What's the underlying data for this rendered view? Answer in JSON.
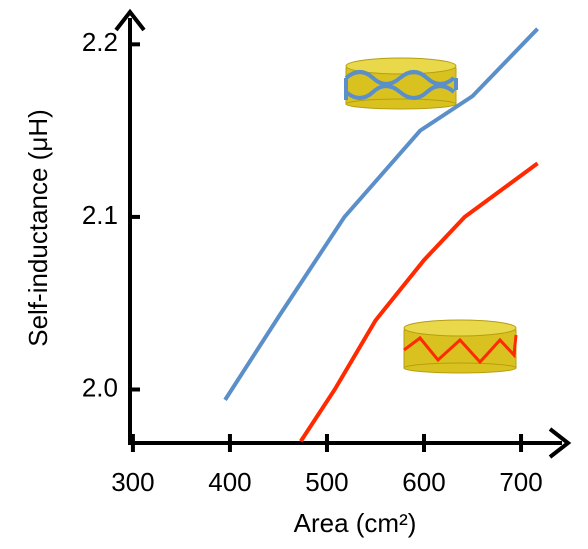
{
  "chart_data": {
    "type": "line",
    "xlabel": "Area (cm²)",
    "ylabel": "Self-inductance (μH)",
    "xlim": [
      297,
      735
    ],
    "ylim": [
      1.969,
      2.217
    ],
    "xticks": [
      300,
      400,
      500,
      600,
      700
    ],
    "yticks": [
      {
        "value": 2,
        "label": "2.0"
      },
      2.1,
      2.2
    ],
    "series": [
      {
        "color": "#5b8fc9",
        "x": [
          395,
          450,
          518,
          596,
          650,
          717
        ],
        "values": [
          1.994,
          2.042,
          2.1,
          2.15,
          2.17,
          2.209
        ]
      },
      {
        "color": "#ff2a00",
        "x": [
          473,
          508,
          550,
          600,
          642,
          717
        ],
        "values": [
          1.97,
          2.0,
          2.04,
          2.075,
          2.1,
          2.131
        ]
      }
    ]
  }
}
